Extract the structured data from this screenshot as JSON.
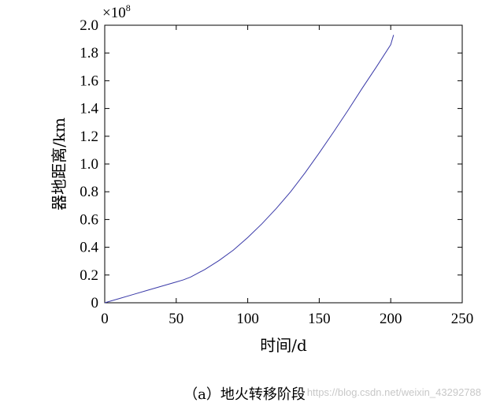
{
  "chart_data": {
    "type": "line",
    "title": "",
    "xlabel": "时间/d",
    "ylabel": "器地距离/km",
    "y_multiplier_label": "×10",
    "y_multiplier_exponent": "8",
    "xlim": [
      0,
      250
    ],
    "ylim": [
      0,
      2.0
    ],
    "x_ticks": [
      "0",
      "50",
      "100",
      "150",
      "200",
      "250"
    ],
    "y_ticks": [
      "0",
      "0.2",
      "0.4",
      "0.6",
      "0.8",
      "1.0",
      "1.2",
      "1.4",
      "1.6",
      "1.8",
      "2.0"
    ],
    "grid": false,
    "series": [
      {
        "color": "#3a3aa8",
        "x": [
          0,
          10,
          20,
          30,
          40,
          50,
          55,
          60,
          70,
          80,
          90,
          100,
          110,
          120,
          130,
          140,
          150,
          160,
          170,
          180,
          190,
          200,
          202
        ],
        "y": [
          0.0,
          0.03,
          0.06,
          0.09,
          0.12,
          0.15,
          0.165,
          0.185,
          0.24,
          0.305,
          0.38,
          0.47,
          0.57,
          0.68,
          0.8,
          0.935,
          1.08,
          1.23,
          1.385,
          1.545,
          1.7,
          1.86,
          1.93
        ]
      }
    ]
  },
  "caption": "（a）地火转移阶段",
  "watermark": "https://blog.csdn.net/weixin_43292788"
}
